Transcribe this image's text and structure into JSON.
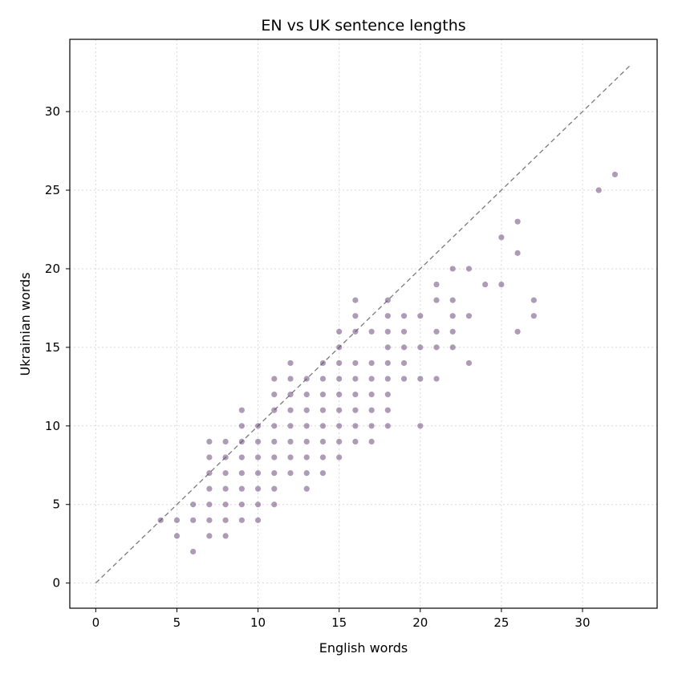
{
  "chart_data": {
    "type": "scatter",
    "title": "EN vs UK sentence lengths",
    "xlabel": "English words",
    "ylabel": "Ukrainian words",
    "xlim": [
      -1.6,
      34.6
    ],
    "ylim": [
      -1.6,
      34.6
    ],
    "xticks": [
      0,
      5,
      10,
      15,
      20,
      25,
      30
    ],
    "yticks": [
      0,
      5,
      10,
      15,
      20,
      25,
      30
    ],
    "grid": true,
    "point_color": "#6b4a7a",
    "point_opacity": 0.55,
    "reference_line": {
      "from": [
        0,
        0
      ],
      "to": [
        33,
        33
      ],
      "style": "dashed",
      "color": "#7a7a7a"
    },
    "points": [
      [
        4,
        4
      ],
      [
        5,
        4
      ],
      [
        5,
        3
      ],
      [
        6,
        5
      ],
      [
        6,
        4
      ],
      [
        6,
        2
      ],
      [
        7,
        9
      ],
      [
        7,
        8
      ],
      [
        7,
        7
      ],
      [
        7,
        6
      ],
      [
        7,
        5
      ],
      [
        7,
        4
      ],
      [
        7,
        3
      ],
      [
        8,
        9
      ],
      [
        8,
        8
      ],
      [
        8,
        7
      ],
      [
        8,
        6
      ],
      [
        8,
        5
      ],
      [
        8,
        4
      ],
      [
        8,
        3
      ],
      [
        9,
        11
      ],
      [
        9,
        10
      ],
      [
        9,
        9
      ],
      [
        9,
        8
      ],
      [
        9,
        7
      ],
      [
        9,
        6
      ],
      [
        9,
        5
      ],
      [
        9,
        4
      ],
      [
        10,
        10
      ],
      [
        10,
        9
      ],
      [
        10,
        8
      ],
      [
        10,
        7
      ],
      [
        10,
        6
      ],
      [
        10,
        5
      ],
      [
        10,
        4
      ],
      [
        11,
        13
      ],
      [
        11,
        12
      ],
      [
        11,
        11
      ],
      [
        11,
        10
      ],
      [
        11,
        9
      ],
      [
        11,
        8
      ],
      [
        11,
        7
      ],
      [
        11,
        6
      ],
      [
        11,
        5
      ],
      [
        12,
        14
      ],
      [
        12,
        13
      ],
      [
        12,
        12
      ],
      [
        12,
        11
      ],
      [
        12,
        10
      ],
      [
        12,
        9
      ],
      [
        12,
        8
      ],
      [
        12,
        7
      ],
      [
        13,
        13
      ],
      [
        13,
        12
      ],
      [
        13,
        11
      ],
      [
        13,
        10
      ],
      [
        13,
        9
      ],
      [
        13,
        8
      ],
      [
        13,
        7
      ],
      [
        13,
        6
      ],
      [
        14,
        14
      ],
      [
        14,
        13
      ],
      [
        14,
        12
      ],
      [
        14,
        11
      ],
      [
        14,
        10
      ],
      [
        14,
        9
      ],
      [
        14,
        8
      ],
      [
        14,
        7
      ],
      [
        15,
        16
      ],
      [
        15,
        15
      ],
      [
        15,
        14
      ],
      [
        15,
        13
      ],
      [
        15,
        12
      ],
      [
        15,
        11
      ],
      [
        15,
        10
      ],
      [
        15,
        9
      ],
      [
        15,
        8
      ],
      [
        16,
        18
      ],
      [
        16,
        17
      ],
      [
        16,
        16
      ],
      [
        16,
        14
      ],
      [
        16,
        13
      ],
      [
        16,
        12
      ],
      [
        16,
        11
      ],
      [
        16,
        10
      ],
      [
        16,
        9
      ],
      [
        17,
        16
      ],
      [
        17,
        14
      ],
      [
        17,
        13
      ],
      [
        17,
        12
      ],
      [
        17,
        11
      ],
      [
        17,
        10
      ],
      [
        17,
        9
      ],
      [
        18,
        18
      ],
      [
        18,
        17
      ],
      [
        18,
        16
      ],
      [
        18,
        15
      ],
      [
        18,
        14
      ],
      [
        18,
        13
      ],
      [
        18,
        12
      ],
      [
        18,
        11
      ],
      [
        18,
        10
      ],
      [
        19,
        17
      ],
      [
        19,
        16
      ],
      [
        19,
        15
      ],
      [
        19,
        14
      ],
      [
        19,
        13
      ],
      [
        20,
        17
      ],
      [
        20,
        15
      ],
      [
        20,
        13
      ],
      [
        20,
        10
      ],
      [
        21,
        19
      ],
      [
        21,
        18
      ],
      [
        21,
        16
      ],
      [
        21,
        15
      ],
      [
        21,
        13
      ],
      [
        22,
        20
      ],
      [
        22,
        18
      ],
      [
        22,
        17
      ],
      [
        22,
        16
      ],
      [
        22,
        15
      ],
      [
        23,
        20
      ],
      [
        23,
        17
      ],
      [
        23,
        14
      ],
      [
        24,
        19
      ],
      [
        25,
        22
      ],
      [
        25,
        19
      ],
      [
        26,
        23
      ],
      [
        26,
        21
      ],
      [
        26,
        16
      ],
      [
        27,
        18
      ],
      [
        27,
        17
      ],
      [
        31,
        25
      ],
      [
        32,
        26
      ]
    ]
  }
}
